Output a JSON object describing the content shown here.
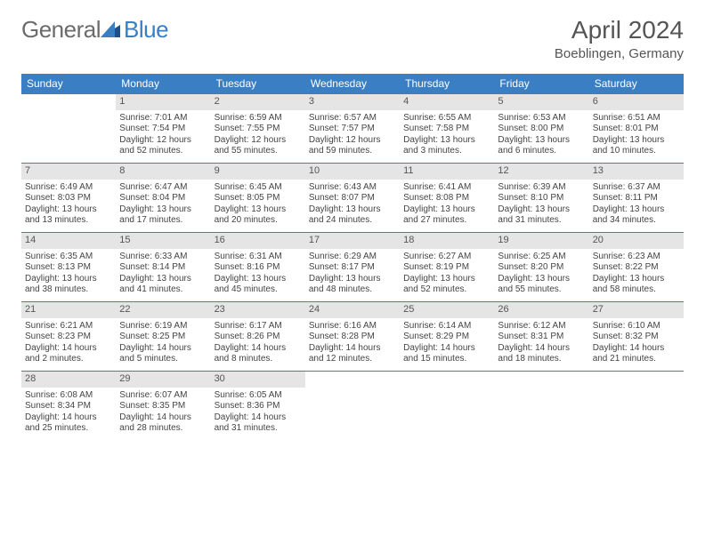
{
  "brand": {
    "part1": "General",
    "part2": "Blue"
  },
  "title": {
    "month": "April 2024",
    "location": "Boeblingen, Germany"
  },
  "colors": {
    "accent": "#3a7fc4",
    "dayshade": "#e5e5e5",
    "text": "#444"
  },
  "weekdays": [
    "Sunday",
    "Monday",
    "Tuesday",
    "Wednesday",
    "Thursday",
    "Friday",
    "Saturday"
  ],
  "weeks": [
    [
      null,
      {
        "n": "1",
        "sr": "Sunrise: 7:01 AM",
        "ss": "Sunset: 7:54 PM",
        "d1": "Daylight: 12 hours",
        "d2": "and 52 minutes."
      },
      {
        "n": "2",
        "sr": "Sunrise: 6:59 AM",
        "ss": "Sunset: 7:55 PM",
        "d1": "Daylight: 12 hours",
        "d2": "and 55 minutes."
      },
      {
        "n": "3",
        "sr": "Sunrise: 6:57 AM",
        "ss": "Sunset: 7:57 PM",
        "d1": "Daylight: 12 hours",
        "d2": "and 59 minutes."
      },
      {
        "n": "4",
        "sr": "Sunrise: 6:55 AM",
        "ss": "Sunset: 7:58 PM",
        "d1": "Daylight: 13 hours",
        "d2": "and 3 minutes."
      },
      {
        "n": "5",
        "sr": "Sunrise: 6:53 AM",
        "ss": "Sunset: 8:00 PM",
        "d1": "Daylight: 13 hours",
        "d2": "and 6 minutes."
      },
      {
        "n": "6",
        "sr": "Sunrise: 6:51 AM",
        "ss": "Sunset: 8:01 PM",
        "d1": "Daylight: 13 hours",
        "d2": "and 10 minutes."
      }
    ],
    [
      {
        "n": "7",
        "sr": "Sunrise: 6:49 AM",
        "ss": "Sunset: 8:03 PM",
        "d1": "Daylight: 13 hours",
        "d2": "and 13 minutes."
      },
      {
        "n": "8",
        "sr": "Sunrise: 6:47 AM",
        "ss": "Sunset: 8:04 PM",
        "d1": "Daylight: 13 hours",
        "d2": "and 17 minutes."
      },
      {
        "n": "9",
        "sr": "Sunrise: 6:45 AM",
        "ss": "Sunset: 8:05 PM",
        "d1": "Daylight: 13 hours",
        "d2": "and 20 minutes."
      },
      {
        "n": "10",
        "sr": "Sunrise: 6:43 AM",
        "ss": "Sunset: 8:07 PM",
        "d1": "Daylight: 13 hours",
        "d2": "and 24 minutes."
      },
      {
        "n": "11",
        "sr": "Sunrise: 6:41 AM",
        "ss": "Sunset: 8:08 PM",
        "d1": "Daylight: 13 hours",
        "d2": "and 27 minutes."
      },
      {
        "n": "12",
        "sr": "Sunrise: 6:39 AM",
        "ss": "Sunset: 8:10 PM",
        "d1": "Daylight: 13 hours",
        "d2": "and 31 minutes."
      },
      {
        "n": "13",
        "sr": "Sunrise: 6:37 AM",
        "ss": "Sunset: 8:11 PM",
        "d1": "Daylight: 13 hours",
        "d2": "and 34 minutes."
      }
    ],
    [
      {
        "n": "14",
        "sr": "Sunrise: 6:35 AM",
        "ss": "Sunset: 8:13 PM",
        "d1": "Daylight: 13 hours",
        "d2": "and 38 minutes."
      },
      {
        "n": "15",
        "sr": "Sunrise: 6:33 AM",
        "ss": "Sunset: 8:14 PM",
        "d1": "Daylight: 13 hours",
        "d2": "and 41 minutes."
      },
      {
        "n": "16",
        "sr": "Sunrise: 6:31 AM",
        "ss": "Sunset: 8:16 PM",
        "d1": "Daylight: 13 hours",
        "d2": "and 45 minutes."
      },
      {
        "n": "17",
        "sr": "Sunrise: 6:29 AM",
        "ss": "Sunset: 8:17 PM",
        "d1": "Daylight: 13 hours",
        "d2": "and 48 minutes."
      },
      {
        "n": "18",
        "sr": "Sunrise: 6:27 AM",
        "ss": "Sunset: 8:19 PM",
        "d1": "Daylight: 13 hours",
        "d2": "and 52 minutes."
      },
      {
        "n": "19",
        "sr": "Sunrise: 6:25 AM",
        "ss": "Sunset: 8:20 PM",
        "d1": "Daylight: 13 hours",
        "d2": "and 55 minutes."
      },
      {
        "n": "20",
        "sr": "Sunrise: 6:23 AM",
        "ss": "Sunset: 8:22 PM",
        "d1": "Daylight: 13 hours",
        "d2": "and 58 minutes."
      }
    ],
    [
      {
        "n": "21",
        "sr": "Sunrise: 6:21 AM",
        "ss": "Sunset: 8:23 PM",
        "d1": "Daylight: 14 hours",
        "d2": "and 2 minutes."
      },
      {
        "n": "22",
        "sr": "Sunrise: 6:19 AM",
        "ss": "Sunset: 8:25 PM",
        "d1": "Daylight: 14 hours",
        "d2": "and 5 minutes."
      },
      {
        "n": "23",
        "sr": "Sunrise: 6:17 AM",
        "ss": "Sunset: 8:26 PM",
        "d1": "Daylight: 14 hours",
        "d2": "and 8 minutes."
      },
      {
        "n": "24",
        "sr": "Sunrise: 6:16 AM",
        "ss": "Sunset: 8:28 PM",
        "d1": "Daylight: 14 hours",
        "d2": "and 12 minutes."
      },
      {
        "n": "25",
        "sr": "Sunrise: 6:14 AM",
        "ss": "Sunset: 8:29 PM",
        "d1": "Daylight: 14 hours",
        "d2": "and 15 minutes."
      },
      {
        "n": "26",
        "sr": "Sunrise: 6:12 AM",
        "ss": "Sunset: 8:31 PM",
        "d1": "Daylight: 14 hours",
        "d2": "and 18 minutes."
      },
      {
        "n": "27",
        "sr": "Sunrise: 6:10 AM",
        "ss": "Sunset: 8:32 PM",
        "d1": "Daylight: 14 hours",
        "d2": "and 21 minutes."
      }
    ],
    [
      {
        "n": "28",
        "sr": "Sunrise: 6:08 AM",
        "ss": "Sunset: 8:34 PM",
        "d1": "Daylight: 14 hours",
        "d2": "and 25 minutes."
      },
      {
        "n": "29",
        "sr": "Sunrise: 6:07 AM",
        "ss": "Sunset: 8:35 PM",
        "d1": "Daylight: 14 hours",
        "d2": "and 28 minutes."
      },
      {
        "n": "30",
        "sr": "Sunrise: 6:05 AM",
        "ss": "Sunset: 8:36 PM",
        "d1": "Daylight: 14 hours",
        "d2": "and 31 minutes."
      },
      null,
      null,
      null,
      null
    ]
  ]
}
